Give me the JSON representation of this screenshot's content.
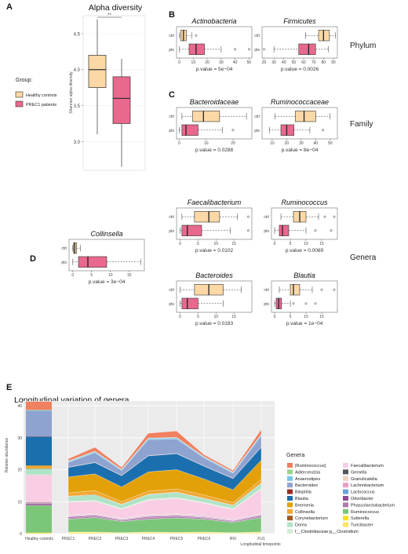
{
  "colors": {
    "healthy": "#FBD8A6",
    "prec1": "#E8688E",
    "panel_bg": "#EBEBEB"
  },
  "labels": {
    "A": "A",
    "B": "B",
    "C": "C",
    "D": "D",
    "E": "E",
    "alpha_title": "Alpha diversity",
    "alpha_ylabel": "Shannon alpha diversity",
    "sig": "**",
    "group_title": "Group:",
    "group_healthy": "Healthy controls",
    "group_prec1": "PREC1 patients",
    "phylum": "Phylum",
    "family": "Family",
    "genera": "Genera",
    "ctrl": "ctrl",
    "pts": "pts",
    "e_title": "Longitudinal variation of genera",
    "e_ylabel": "Relative abundance",
    "e_xlabel": "Longitudinal timepoints",
    "genera_legend_title": "Genera"
  },
  "chart_data": [
    {
      "type": "box",
      "id": "A",
      "title": "Alpha diversity",
      "ylabel": "Shannon alpha diversity",
      "yticks": [
        3.0,
        3.5,
        4.0,
        4.5
      ],
      "ylim": [
        2.6,
        4.75
      ],
      "groups": [
        {
          "name": "Healthy controls",
          "min": 3.1,
          "q1": 3.75,
          "median": 4.0,
          "q3": 4.2,
          "max": 4.7
        },
        {
          "name": "PREC1 patients",
          "min": 2.65,
          "q1": 3.25,
          "median": 3.6,
          "q3": 3.9,
          "max": 4.15
        }
      ],
      "annotation": "**"
    },
    {
      "type": "box",
      "id": "B1",
      "title": "Actinobacteria",
      "xticks": [
        0,
        10,
        20,
        30,
        40,
        50
      ],
      "xlim": [
        -2,
        52
      ],
      "pvalue": "p.value = 5e−04",
      "ctrl": {
        "min": 0,
        "q1": 1,
        "median": 3,
        "q3": 5,
        "max": 9,
        "outliers": [
          12
        ]
      },
      "pts": {
        "min": 0,
        "q1": 7,
        "median": 12,
        "q3": 18,
        "max": 30,
        "outliers": [
          40,
          50
        ]
      }
    },
    {
      "type": "box",
      "id": "B2",
      "title": "Firmicutes",
      "xticks": [
        20,
        30,
        40,
        50,
        60,
        70,
        80,
        90
      ],
      "xlim": [
        18,
        94
      ],
      "pvalue": "p.value = 0.0026",
      "ctrl": {
        "min": 62,
        "q1": 75,
        "median": 80,
        "q3": 86,
        "max": 92,
        "outliers": []
      },
      "pts": {
        "min": 30,
        "q1": 55,
        "median": 65,
        "q3": 72,
        "max": 85,
        "outliers": [
          20
        ]
      }
    },
    {
      "type": "box",
      "id": "C1",
      "title": "Bacteroidaceae",
      "xticks": [
        0,
        10,
        20
      ],
      "xlim": [
        -1,
        27
      ],
      "pvalue": "p.value = 0.0288",
      "ctrl": {
        "min": 1,
        "q1": 5,
        "median": 9,
        "q3": 15,
        "max": 25,
        "outliers": []
      },
      "pts": {
        "min": 0,
        "q1": 1,
        "median": 2.5,
        "q3": 7,
        "max": 16,
        "outliers": [
          20
        ]
      }
    },
    {
      "type": "box",
      "id": "C2",
      "title": "Ruminococcaceae",
      "xticks": [
        10,
        20,
        30,
        40,
        50
      ],
      "xlim": [
        3,
        55
      ],
      "pvalue": "p.value = 8e−04",
      "ctrl": {
        "min": 12,
        "q1": 26,
        "median": 32,
        "q3": 40,
        "max": 50,
        "outliers": []
      },
      "pts": {
        "min": 8,
        "q1": 16,
        "median": 20,
        "q3": 25,
        "max": 36,
        "outliers": [
          45
        ]
      }
    },
    {
      "type": "box",
      "id": "D0",
      "title": "Collinsella",
      "xticks": [
        0,
        5,
        10,
        15
      ],
      "xlim": [
        -1,
        19
      ],
      "pvalue": "p.value = 3e−04",
      "ctrl": {
        "min": 0,
        "q1": 0.2,
        "median": 0.5,
        "q3": 1,
        "max": 2,
        "outliers": []
      },
      "pts": {
        "min": 0,
        "q1": 1.5,
        "median": 4,
        "q3": 9,
        "max": 18,
        "outliers": []
      }
    },
    {
      "type": "box",
      "id": "D1",
      "title": "Faecalibacterium",
      "xticks": [
        0,
        5,
        10,
        15
      ],
      "xlim": [
        -1,
        20
      ],
      "pvalue": "p.value = 0.0102",
      "ctrl": {
        "min": 0.5,
        "q1": 4,
        "median": 8,
        "q3": 11,
        "max": 16,
        "outliers": [
          19
        ]
      },
      "pts": {
        "min": 0,
        "q1": 0.5,
        "median": 2,
        "q3": 6,
        "max": 14,
        "outliers": [
          19
        ]
      }
    },
    {
      "type": "box",
      "id": "D2",
      "title": "Ruminococcus",
      "xticks": [
        0,
        5,
        10,
        15
      ],
      "xlim": [
        -1,
        20
      ],
      "pvalue": "p.value = 0.0069",
      "ctrl": {
        "min": 2,
        "q1": 6,
        "median": 8,
        "q3": 10,
        "max": 14,
        "outliers": [
          16,
          19
        ]
      },
      "pts": {
        "min": 0,
        "q1": 1.5,
        "median": 2.5,
        "q3": 4.5,
        "max": 10,
        "outliers": [
          13,
          18
        ]
      }
    },
    {
      "type": "box",
      "id": "D3",
      "title": "Bacteroides",
      "xticks": [
        0,
        5,
        10,
        15
      ],
      "xlim": [
        -1,
        20
      ],
      "pvalue": "p.value = 0.0183",
      "ctrl": {
        "min": 0,
        "q1": 4,
        "median": 8,
        "q3": 12,
        "max": 17,
        "outliers": []
      },
      "pts": {
        "min": 0,
        "q1": 0.5,
        "median": 2,
        "q3": 5,
        "max": 12,
        "outliers": []
      }
    },
    {
      "type": "box",
      "id": "D4",
      "title": "Blautia",
      "xticks": [
        0,
        5,
        10,
        15
      ],
      "xlim": [
        -1,
        20
      ],
      "pvalue": "p.value = 1e−04",
      "ctrl": {
        "min": 1.5,
        "q1": 5,
        "median": 6,
        "q3": 8,
        "max": 12,
        "outliers": [
          15,
          19
        ]
      },
      "pts": {
        "min": 0,
        "q1": 0.5,
        "median": 1.3,
        "q3": 2.2,
        "max": 5,
        "outliers": [
          6,
          10,
          13
        ]
      }
    },
    {
      "type": "area",
      "id": "E",
      "title": "Longitudinal variation of genera",
      "ylabel": "Relative abundance",
      "xlabel": "Longitudinal timepoints",
      "categories": [
        "Healthy controls",
        "PREC1",
        "PREC2",
        "PREC3",
        "PREC4",
        "PREC5",
        "PREC6",
        "RIV",
        "FU1"
      ],
      "yticks": [
        0,
        10,
        20,
        30,
        40
      ],
      "ylim": [
        0,
        41
      ],
      "series": [
        {
          "name": "Turicibacter",
          "color": "#FFE566",
          "values": [
            0.2,
            0.3,
            0.3,
            0.2,
            0.3,
            0.2,
            0.3,
            0.2,
            0.3
          ]
        },
        {
          "name": "Sutterella",
          "color": "#F7DF1E",
          "values": [
            0.1,
            0.2,
            0.2,
            0.1,
            0.2,
            0.2,
            0.2,
            0.1,
            0.2
          ]
        },
        {
          "name": "Ruminococcus",
          "color": "#7CC67A",
          "values": [
            8.5,
            4.0,
            4.5,
            3.5,
            4.0,
            4.5,
            4.0,
            3.2,
            4.5
          ]
        },
        {
          "name": "Phascolarctobacterium",
          "color": "#B07BAF",
          "values": [
            0.3,
            0.4,
            0.4,
            0.3,
            0.5,
            0.4,
            0.4,
            0.3,
            0.4
          ]
        },
        {
          "name": "Odoribacter",
          "color": "#8E4A8F",
          "values": [
            0.2,
            0.3,
            0.3,
            0.2,
            0.3,
            0.3,
            0.2,
            0.2,
            0.3
          ]
        },
        {
          "name": "Lactococcus",
          "color": "#6BA4D8",
          "values": [
            0.1,
            0.1,
            0.1,
            0.1,
            0.1,
            0.1,
            0.1,
            0.1,
            0.1
          ]
        },
        {
          "name": "Lachnobacterium",
          "color": "#E8A0C8",
          "values": [
            0.2,
            0.3,
            0.3,
            0.2,
            0.3,
            0.3,
            0.3,
            0.2,
            0.3
          ]
        },
        {
          "name": "Granulicatella",
          "color": "#F2D1C4",
          "values": [
            0.1,
            0.1,
            0.1,
            0.1,
            0.1,
            0.1,
            0.1,
            0.1,
            0.1
          ]
        },
        {
          "name": "Gemella",
          "color": "#555555",
          "values": [
            0.1,
            0.1,
            0.1,
            0.1,
            0.1,
            0.1,
            0.1,
            0.1,
            0.1
          ]
        },
        {
          "name": "Faecalibacterium",
          "color": "#F9CDE3",
          "values": [
            8.5,
            4.0,
            3.8,
            2.8,
            4.5,
            4.8,
            3.8,
            3.0,
            7.5
          ]
        },
        {
          "name": "f__Clostridiaceae;g__Clostridium",
          "color": "#D5EBD8",
          "values": [
            0.2,
            0.3,
            0.3,
            0.3,
            0.3,
            0.3,
            0.3,
            0.3,
            0.4
          ]
        },
        {
          "name": "Dorea",
          "color": "#B0E3C6",
          "values": [
            1.8,
            1.5,
            1.7,
            1.2,
            1.5,
            1.6,
            1.2,
            1.0,
            1.5
          ]
        },
        {
          "name": "Corynebacterium",
          "color": "#9E5A1E",
          "values": [
            0.1,
            0.1,
            0.2,
            0.1,
            0.1,
            0.1,
            0.1,
            0.1,
            0.1
          ]
        },
        {
          "name": "Collinsella",
          "color": "#F0A830",
          "values": [
            0.7,
            1.0,
            1.2,
            0.8,
            1.0,
            1.0,
            1.0,
            0.8,
            1.2
          ]
        },
        {
          "name": "Brenneria",
          "color": "#E3A008",
          "values": [
            0.2,
            5.0,
            5.2,
            4.6,
            6.0,
            6.0,
            5.0,
            4.0,
            6.0
          ]
        },
        {
          "name": "Blautia",
          "color": "#1C6FAE",
          "values": [
            9.0,
            3.0,
            3.5,
            3.5,
            5.0,
            5.0,
            4.0,
            3.5,
            4.0
          ]
        },
        {
          "name": "Bilophila",
          "color": "#9C2A24",
          "values": [
            0.1,
            0.1,
            0.1,
            0.1,
            0.1,
            0.1,
            0.1,
            0.1,
            0.1
          ]
        },
        {
          "name": "Bacteroides",
          "color": "#8EA3D0",
          "values": [
            8.0,
            1.5,
            3.0,
            1.5,
            5.0,
            4.5,
            2.5,
            1.6,
            3.5
          ]
        },
        {
          "name": "Anaerostipes",
          "color": "#7AC6E8",
          "values": [
            0.2,
            0.3,
            0.4,
            0.3,
            0.4,
            0.4,
            0.3,
            0.3,
            0.4
          ]
        },
        {
          "name": "Adlercreutzia",
          "color": "#98D68C",
          "values": [
            0.1,
            0.1,
            0.1,
            0.1,
            0.1,
            0.1,
            0.1,
            0.1,
            0.1
          ]
        },
        {
          "name": "[Ruminococcus]",
          "color": "#F08060",
          "values": [
            2.6,
            0.7,
            1.2,
            0.6,
            1.5,
            2.0,
            0.6,
            0.5,
            1.5
          ]
        }
      ]
    }
  ]
}
